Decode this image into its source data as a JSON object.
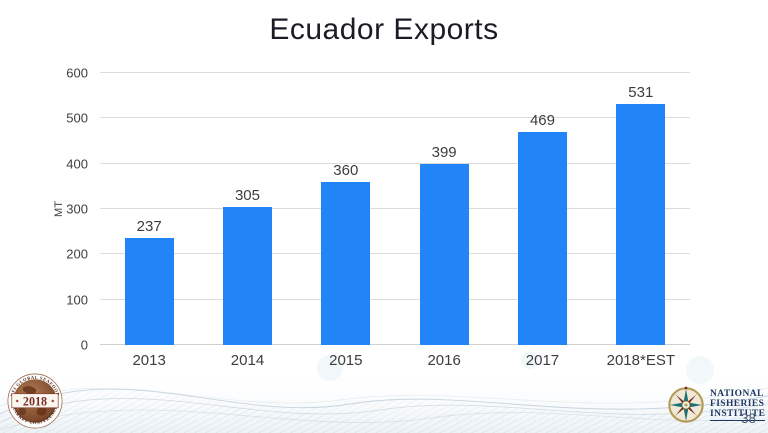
{
  "slide": {
    "title": "Ecuador Exports",
    "page_number": "38"
  },
  "chart_data": {
    "type": "bar",
    "title": "Ecuador Exports",
    "categories": [
      "2013",
      "2014",
      "2015",
      "2016",
      "2017",
      "2018*EST"
    ],
    "values": [
      237,
      305,
      360,
      399,
      469,
      531
    ],
    "xlabel": "",
    "ylabel": "MT",
    "ylim": [
      0,
      600
    ],
    "ytick_step": 100,
    "grid": true,
    "legend": false,
    "value_labels": true,
    "bar_color": "#2185F8"
  },
  "footer": {
    "left_seal": {
      "year": "2018",
      "ring_text_top": "NFI GLOBAL SEAFOOD",
      "ring_text_bottom": "MARKET CONFERENCE"
    },
    "right_logo": {
      "line1": "National",
      "line2": "Fisheries",
      "line3": "Institute"
    }
  },
  "colors": {
    "bar": "#2185F8",
    "gridline": "#dcdcdc",
    "axis_text": "#3f3f3f",
    "title_text": "#1b1b26",
    "logo_text": "#1f3864",
    "page_number": "#44546a"
  }
}
